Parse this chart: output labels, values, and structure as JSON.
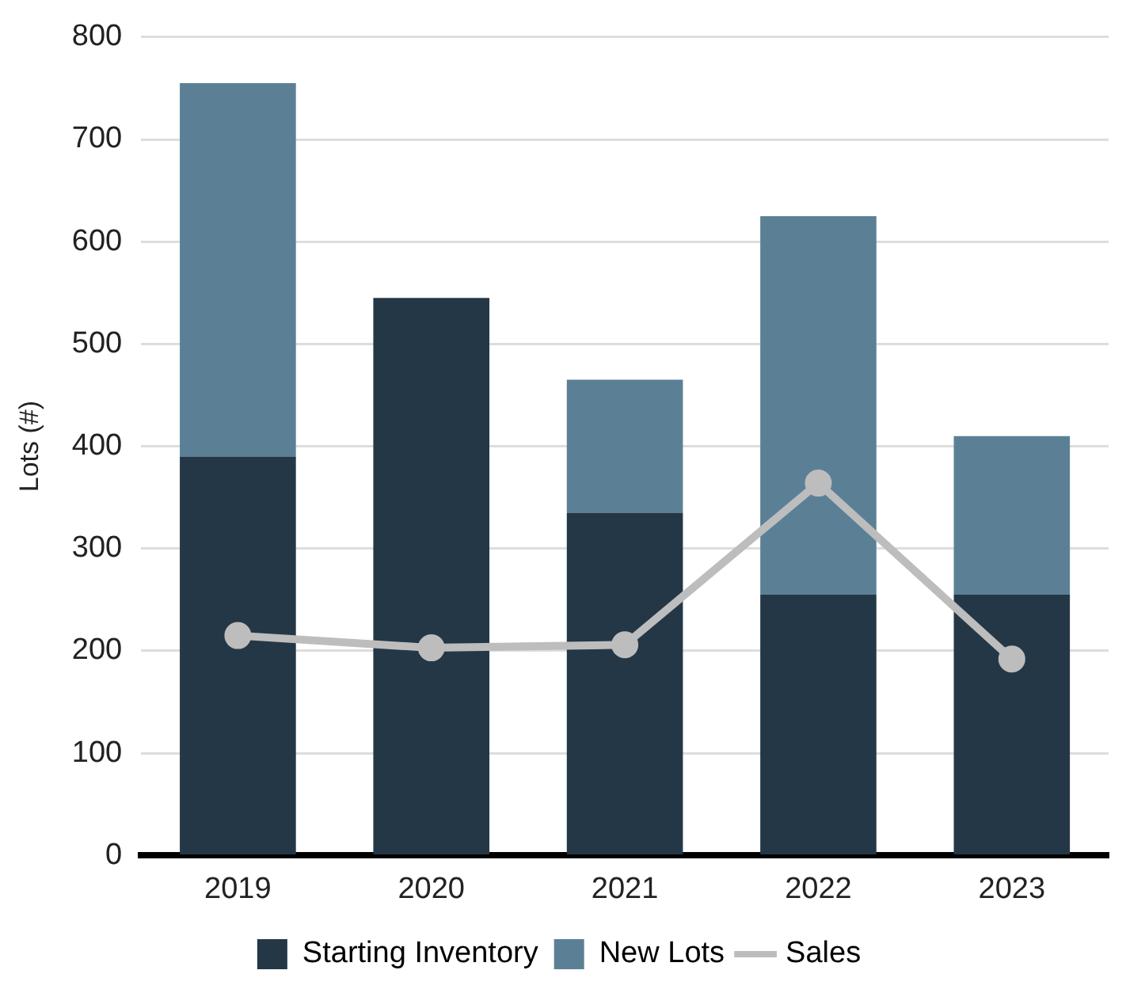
{
  "chart_data": {
    "type": "bar",
    "stacked": true,
    "ylabel": "Lots (#)",
    "categories": [
      "2019",
      "2020",
      "2021",
      "2022",
      "2023"
    ],
    "series": [
      {
        "name": "Starting Inventory",
        "color": "#243746",
        "values": [
          390,
          545,
          335,
          255,
          255
        ]
      },
      {
        "name": "New Lots",
        "color": "#5b8096",
        "values": [
          365,
          0,
          130,
          370,
          155
        ]
      },
      {
        "name": "Sales",
        "type": "line",
        "color": "#bdbdbd",
        "values": [
          215,
          203,
          206,
          364,
          192
        ]
      }
    ],
    "ylim": [
      0,
      800
    ],
    "yticks": [
      0,
      100,
      200,
      300,
      400,
      500,
      600,
      700,
      800
    ],
    "grid": "y",
    "legend": "bottom",
    "marker": "circle",
    "line_style": "solid"
  }
}
